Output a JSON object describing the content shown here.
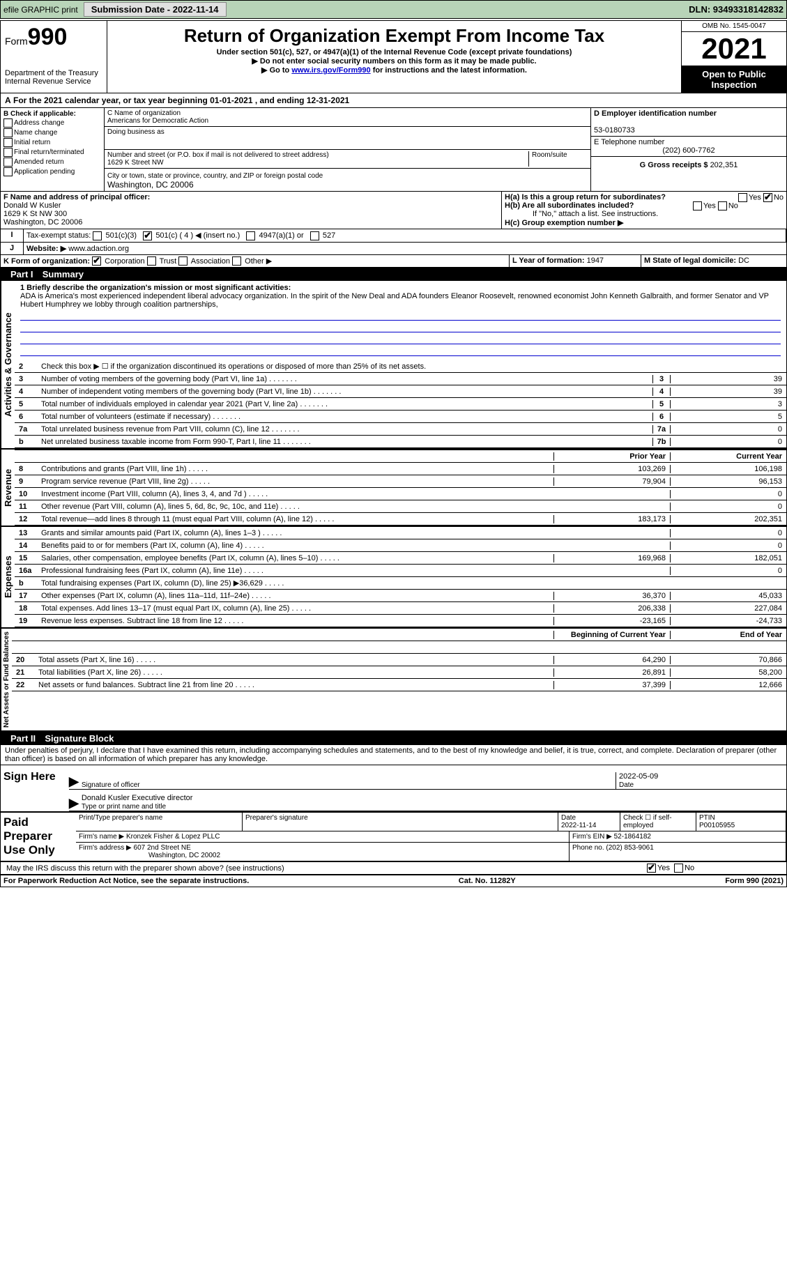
{
  "topbar": {
    "efile": "efile GRAPHIC print",
    "submission": "Submission Date - 2022-11-14",
    "dln": "DLN: 93493318142832"
  },
  "header": {
    "formlabel": "Form",
    "formnum": "990",
    "dept": "Department of the Treasury",
    "irs": "Internal Revenue Service",
    "title": "Return of Organization Exempt From Income Tax",
    "sub1": "Under section 501(c), 527, or 4947(a)(1) of the Internal Revenue Code (except private foundations)",
    "sub2": "▶ Do not enter social security numbers on this form as it may be made public.",
    "sub3_pre": "▶ Go to ",
    "sub3_link": "www.irs.gov/Form990",
    "sub3_post": " for instructions and the latest information.",
    "omb": "OMB No. 1545-0047",
    "year": "2021",
    "open": "Open to Public Inspection"
  },
  "A": {
    "text": "For the 2021 calendar year, or tax year beginning 01-01-2021   , and ending 12-31-2021"
  },
  "B": {
    "label": "B Check if applicable:",
    "opts": [
      "Address change",
      "Name change",
      "Initial return",
      "Final return/terminated",
      "Amended return",
      "Application pending"
    ]
  },
  "C": {
    "namelbl": "C Name of organization",
    "name": "Americans for Democratic Action",
    "dbalbl": "Doing business as",
    "dba": "",
    "addrlbl": "Number and street (or P.O. box if mail is not delivered to street address)",
    "room": "Room/suite",
    "addr": "1629 K Street NW",
    "citylbl": "City or town, state or province, country, and ZIP or foreign postal code",
    "city": "Washington, DC  20006"
  },
  "D": {
    "lbl": "D Employer identification number",
    "val": "53-0180733"
  },
  "E": {
    "lbl": "E Telephone number",
    "val": "(202) 600-7762"
  },
  "G": {
    "lbl": "G Gross receipts $",
    "val": "202,351"
  },
  "F": {
    "lbl": "F  Name and address of principal officer:",
    "name": "Donald W Kusler",
    "addr1": "1629 K St NW 300",
    "addr2": "Washington, DC  20006"
  },
  "H": {
    "a": "H(a)  Is this a group return for subordinates?",
    "ano": "No",
    "ayes": "Yes",
    "b": "H(b)  Are all subordinates included?",
    "bnote": "If \"No,\" attach a list. See instructions.",
    "c": "H(c)  Group exemption number ▶"
  },
  "I": {
    "lbl": "Tax-exempt status:",
    "opts": [
      "501(c)(3)",
      "501(c) ( 4 ) ◀ (insert no.)",
      "4947(a)(1) or",
      "527"
    ]
  },
  "J": {
    "lbl": "Website: ▶",
    "val": "www.adaction.org"
  },
  "K": {
    "lbl": "K Form of organization:",
    "opts": [
      "Corporation",
      "Trust",
      "Association",
      "Other ▶"
    ]
  },
  "L": {
    "lbl": "L Year of formation:",
    "val": "1947"
  },
  "M": {
    "lbl": "M State of legal domicile:",
    "val": "DC"
  },
  "part1": {
    "title": "Part I",
    "name": "Summary"
  },
  "summary": {
    "q1": "1  Briefly describe the organization's mission or most significant activities:",
    "desc": "ADA is America's most experienced independent liberal advocacy organization. In the spirit of the New Deal and ADA founders Eleanor Roosevelt, renowned economist John Kenneth Galbraith, and former Senator and VP Hubert Humphrey we lobby through coalition partnerships,",
    "q2": "Check this box ▶ ☐  if the organization discontinued its operations or disposed of more than 25% of its net assets.",
    "rows": [
      {
        "n": "3",
        "t": "Number of voting members of the governing body (Part VI, line 1a)",
        "c": "3",
        "v": "39"
      },
      {
        "n": "4",
        "t": "Number of independent voting members of the governing body (Part VI, line 1b)",
        "c": "4",
        "v": "39"
      },
      {
        "n": "5",
        "t": "Total number of individuals employed in calendar year 2021 (Part V, line 2a)",
        "c": "5",
        "v": "3"
      },
      {
        "n": "6",
        "t": "Total number of volunteers (estimate if necessary)",
        "c": "6",
        "v": "5"
      },
      {
        "n": "7a",
        "t": "Total unrelated business revenue from Part VIII, column (C), line 12",
        "c": "7a",
        "v": "0"
      },
      {
        "n": "b",
        "t": "Net unrelated business taxable income from Form 990-T, Part I, line 11",
        "c": "7b",
        "v": "0"
      }
    ]
  },
  "revhdr": {
    "prior": "Prior Year",
    "curr": "Current Year"
  },
  "revenue": [
    {
      "n": "8",
      "t": "Contributions and grants (Part VIII, line 1h)",
      "p": "103,269",
      "c": "106,198"
    },
    {
      "n": "9",
      "t": "Program service revenue (Part VIII, line 2g)",
      "p": "79,904",
      "c": "96,153"
    },
    {
      "n": "10",
      "t": "Investment income (Part VIII, column (A), lines 3, 4, and 7d )",
      "p": "",
      "c": "0"
    },
    {
      "n": "11",
      "t": "Other revenue (Part VIII, column (A), lines 5, 6d, 8c, 9c, 10c, and 11e)",
      "p": "",
      "c": "0"
    },
    {
      "n": "12",
      "t": "Total revenue—add lines 8 through 11 (must equal Part VIII, column (A), line 12)",
      "p": "183,173",
      "c": "202,351"
    }
  ],
  "expenses": [
    {
      "n": "13",
      "t": "Grants and similar amounts paid (Part IX, column (A), lines 1–3 )",
      "p": "",
      "c": "0"
    },
    {
      "n": "14",
      "t": "Benefits paid to or for members (Part IX, column (A), line 4)",
      "p": "",
      "c": "0"
    },
    {
      "n": "15",
      "t": "Salaries, other compensation, employee benefits (Part IX, column (A), lines 5–10)",
      "p": "169,968",
      "c": "182,051"
    },
    {
      "n": "16a",
      "t": "Professional fundraising fees (Part IX, column (A), line 11e)",
      "p": "",
      "c": "0"
    },
    {
      "n": "b",
      "t": "Total fundraising expenses (Part IX, column (D), line 25) ▶36,629",
      "p": "grey",
      "c": "grey"
    },
    {
      "n": "17",
      "t": "Other expenses (Part IX, column (A), lines 11a–11d, 11f–24e)",
      "p": "36,370",
      "c": "45,033"
    },
    {
      "n": "18",
      "t": "Total expenses. Add lines 13–17 (must equal Part IX, column (A), line 25)",
      "p": "206,338",
      "c": "227,084"
    },
    {
      "n": "19",
      "t": "Revenue less expenses. Subtract line 18 from line 12",
      "p": "-23,165",
      "c": "-24,733"
    }
  ],
  "nethdr": {
    "b": "Beginning of Current Year",
    "e": "End of Year"
  },
  "net": [
    {
      "n": "20",
      "t": "Total assets (Part X, line 16)",
      "p": "64,290",
      "c": "70,866"
    },
    {
      "n": "21",
      "t": "Total liabilities (Part X, line 26)",
      "p": "26,891",
      "c": "58,200"
    },
    {
      "n": "22",
      "t": "Net assets or fund balances. Subtract line 21 from line 20",
      "p": "37,399",
      "c": "12,666"
    }
  ],
  "part2": {
    "title": "Part II",
    "name": "Signature Block"
  },
  "sig": {
    "decl": "Under penalties of perjury, I declare that I have examined this return, including accompanying schedules and statements, and to the best of my knowledge and belief, it is true, correct, and complete. Declaration of preparer (other than officer) is based on all information of which preparer has any knowledge.",
    "signhere": "Sign Here",
    "sigoff": "Signature of officer",
    "date": "Date",
    "datev": "2022-05-09",
    "typed": "Donald Kusler  Executive director",
    "typedlbl": "Type or print name and title"
  },
  "paid": {
    "lbl": "Paid Preparer Use Only",
    "h": [
      "Print/Type preparer's name",
      "Preparer's signature",
      "Date",
      "Check ☐ if self-employed",
      "PTIN"
    ],
    "date": "2022-11-14",
    "ptin": "P00105955",
    "firmname_l": "Firm's name  ▶",
    "firmname": "Kronzek Fisher & Lopez PLLC",
    "ein_l": "Firm's EIN ▶",
    "ein": "52-1864182",
    "addr_l": "Firm's address ▶",
    "addr1": "607 2nd Street NE",
    "addr2": "Washington, DC  20002",
    "phone_l": "Phone no.",
    "phone": "(202) 853-9061"
  },
  "discuss": {
    "q": "May the IRS discuss this return with the preparer shown above? (see instructions)",
    "yes": "Yes",
    "no": "No"
  },
  "footer": {
    "l": "For Paperwork Reduction Act Notice, see the separate instructions.",
    "c": "Cat. No. 11282Y",
    "r": "Form 990 (2021)"
  },
  "vlabels": {
    "ag": "Activities & Governance",
    "rev": "Revenue",
    "exp": "Expenses",
    "net": "Net Assets or Fund Balances"
  }
}
